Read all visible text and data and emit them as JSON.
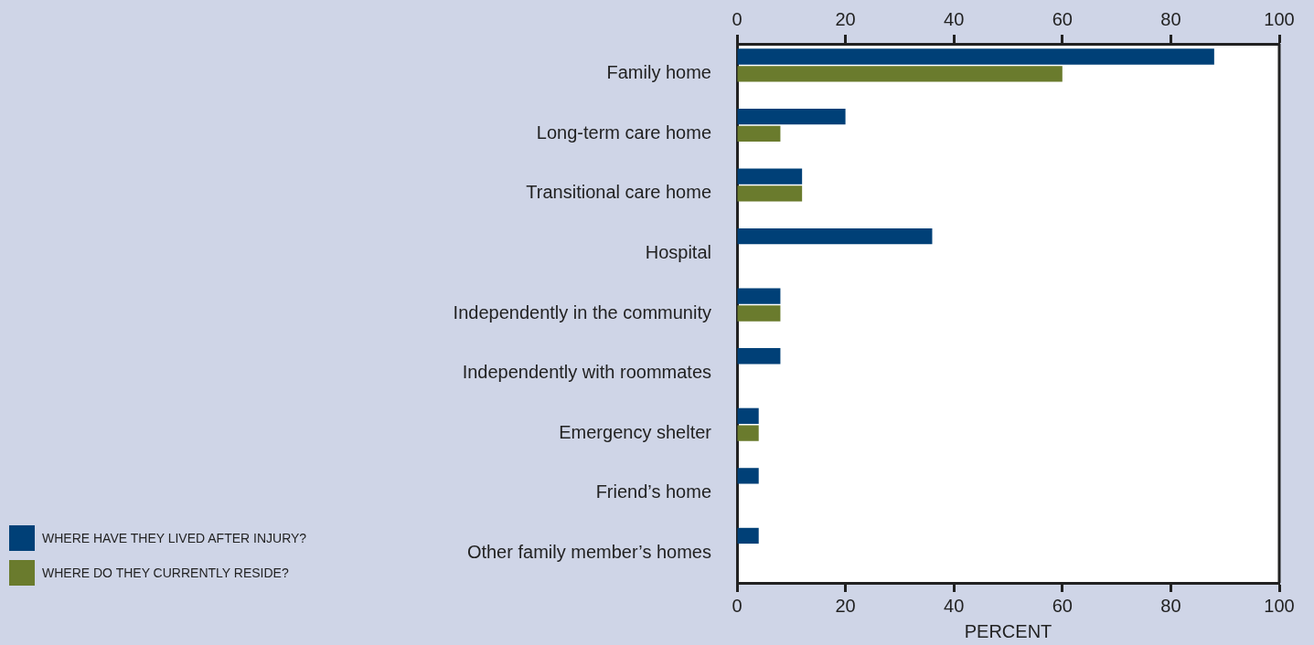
{
  "chart_data": {
    "type": "bar",
    "orientation": "horizontal",
    "categories": [
      "Family home",
      "Long-term care home",
      "Transitional care home",
      "Hospital",
      "Independently in the community",
      "Independently with roommates",
      "Emergency shelter",
      "Friend’s home",
      "Other family member’s homes"
    ],
    "series": [
      {
        "name": "WHERE HAVE THEY LIVED AFTER INJURY?",
        "color": "#004077",
        "values": [
          88,
          20,
          12,
          36,
          8,
          8,
          4,
          4,
          4
        ]
      },
      {
        "name": "WHERE DO THEY CURRENTLY RESIDE?",
        "color": "#6a7b2d",
        "values": [
          60,
          8,
          12,
          null,
          8,
          null,
          4,
          null,
          null
        ]
      }
    ],
    "xlabel": "PERCENT",
    "xlim": [
      0,
      100
    ],
    "xticks": [
      0,
      20,
      40,
      60,
      80,
      100
    ],
    "x2lim": [
      0,
      100
    ],
    "x2ticks": [
      0,
      20,
      40,
      60,
      80,
      100
    ],
    "grid": false,
    "legend": "bottom left"
  }
}
